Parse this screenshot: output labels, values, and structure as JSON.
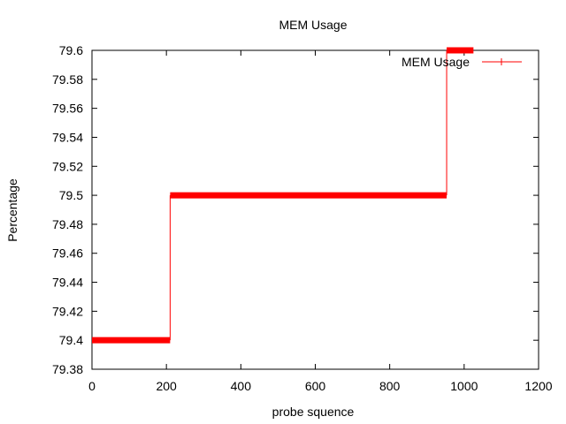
{
  "chart_data": {
    "type": "line",
    "title": "MEM Usage",
    "xlabel": "probe squence",
    "ylabel": "Percentage",
    "xlim": [
      0,
      1200
    ],
    "ylim": [
      79.38,
      79.6
    ],
    "xticks": [
      0,
      200,
      400,
      600,
      800,
      1000,
      1200
    ],
    "xtick_labels": [
      "0",
      "200",
      "400",
      "600",
      "800",
      "1000",
      "1200"
    ],
    "yticks": [
      79.38,
      79.4,
      79.42,
      79.44,
      79.46,
      79.48,
      79.5,
      79.52,
      79.54,
      79.56,
      79.58,
      79.6
    ],
    "ytick_labels": [
      "79.38",
      "79.4",
      "79.42",
      "79.44",
      "79.46",
      "79.48",
      "79.5",
      "79.52",
      "79.54",
      "79.56",
      "79.58",
      "79.6"
    ],
    "grid": false,
    "legend_position": "top-right",
    "series": [
      {
        "name": "MEM Usage",
        "color": "#ff0000",
        "marker": "plus",
        "segments": [
          {
            "x_start": 0,
            "x_end": 210,
            "y": 79.4
          },
          {
            "x_start": 210,
            "x_end": 953,
            "y": 79.5
          },
          {
            "x_start": 953,
            "x_end": 1025,
            "y": 79.6
          }
        ]
      }
    ]
  }
}
